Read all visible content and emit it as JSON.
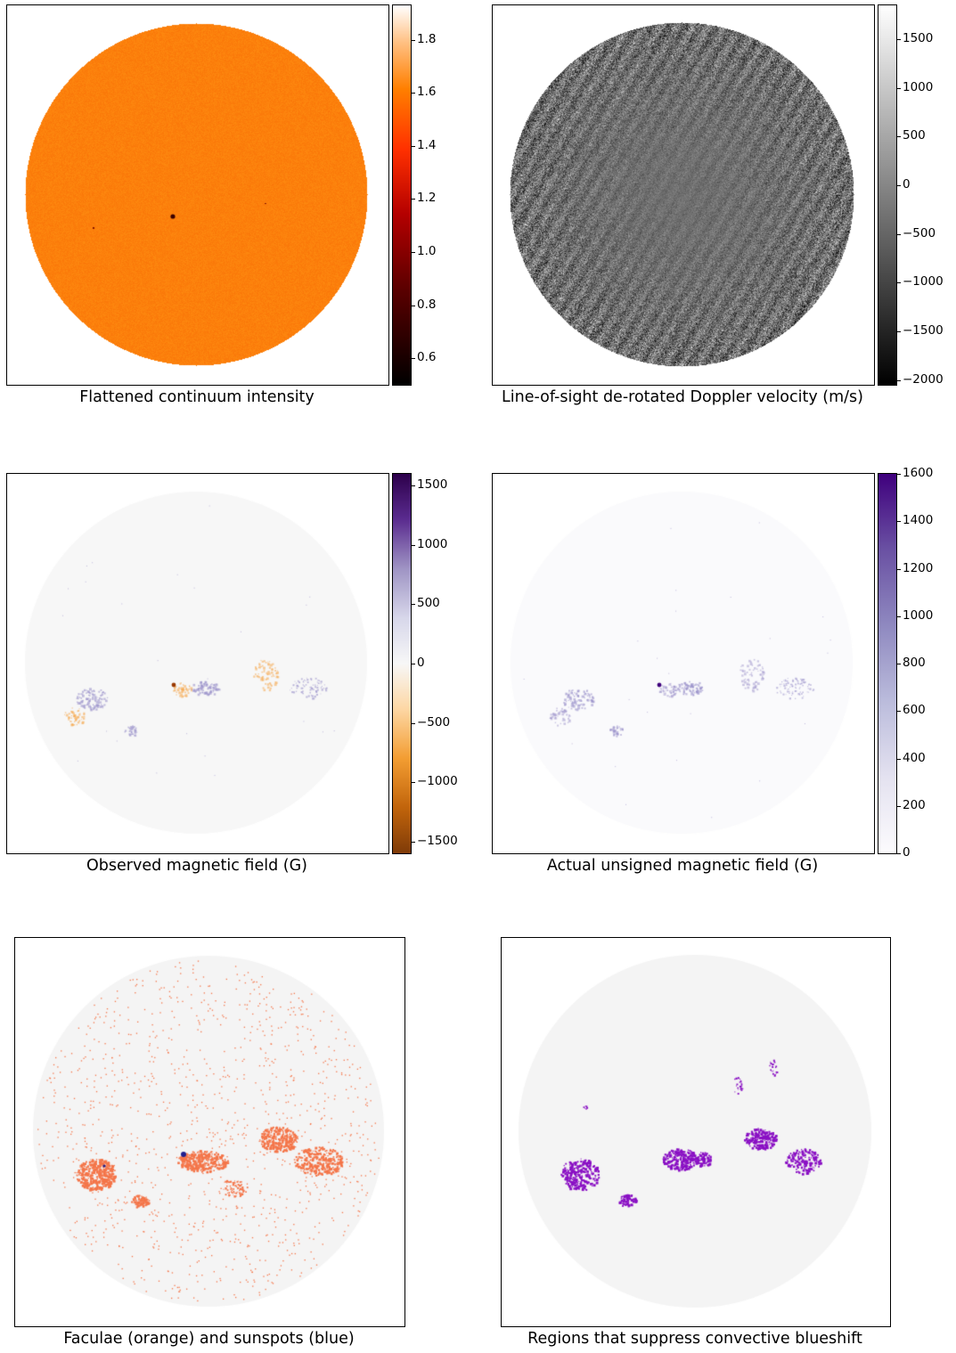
{
  "panels": [
    {
      "id": "continuum",
      "caption": "Flattened continuum intensity",
      "kind": "continuum",
      "colormap": "gist_heat",
      "colorbar": {
        "min": 0.5,
        "max": 1.93,
        "ticks": [
          0.6,
          0.8,
          1.0,
          1.2,
          1.4,
          1.6,
          1.8
        ],
        "tick_labels": [
          "0.6",
          "0.8",
          "1.0",
          "1.2",
          "1.4",
          "1.6",
          "1.8"
        ]
      }
    },
    {
      "id": "doppler",
      "caption": "Line-of-sight de-rotated Doppler velocity (m/s)",
      "kind": "doppler",
      "colormap": "gray",
      "colorbar": {
        "min": -2050,
        "max": 1850,
        "ticks": [
          -2000,
          -1500,
          -1000,
          -500,
          0,
          500,
          1000,
          1500
        ],
        "tick_labels": [
          "−2000",
          "−1500",
          "−1000",
          "−500",
          "0",
          "500",
          "1000",
          "1500"
        ]
      }
    },
    {
      "id": "observed-field",
      "caption": "Observed magnetic field (G)",
      "kind": "bsigned",
      "colormap": "PuOr",
      "colorbar": {
        "min": -1600,
        "max": 1600,
        "ticks": [
          -1500,
          -1000,
          -500,
          0,
          500,
          1000,
          1500
        ],
        "tick_labels": [
          "−1500",
          "−1000",
          "−500",
          "0",
          "500",
          "1000",
          "1500"
        ]
      }
    },
    {
      "id": "unsigned-field",
      "caption": "Actual unsigned magnetic field (G)",
      "kind": "bunsigned",
      "colormap": "Purples",
      "colorbar": {
        "min": 0,
        "max": 1600,
        "ticks": [
          0,
          200,
          400,
          600,
          800,
          1000,
          1200,
          1400,
          1600
        ],
        "tick_labels": [
          "0",
          "200",
          "400",
          "600",
          "800",
          "1000",
          "1200",
          "1400",
          "1600"
        ]
      }
    },
    {
      "id": "faculae-sunspots",
      "caption": "Faculae (orange) and sunspots (blue)",
      "kind": "faculae",
      "colors": {
        "disk": "#f4f4f4",
        "faculae": "#f4764a",
        "sunspots": "#1f1f8f"
      }
    },
    {
      "id": "suppression-regions",
      "caption": "Regions that suppress convective blueshift",
      "kind": "regions",
      "colors": {
        "disk": "#f4f4f4",
        "regions": "#8a10c4"
      }
    }
  ],
  "chart_data": [
    {
      "type": "heatmap",
      "title": "Flattened continuum intensity",
      "colorbar_range": [
        0.5,
        1.93
      ]
    },
    {
      "type": "heatmap",
      "title": "Line-of-sight de-rotated Doppler velocity (m/s)",
      "colorbar_range": [
        -2050,
        1850
      ]
    },
    {
      "type": "heatmap",
      "title": "Observed magnetic field (G)",
      "colorbar_range": [
        -1600,
        1600
      ]
    },
    {
      "type": "heatmap",
      "title": "Actual unsigned magnetic field (G)",
      "colorbar_range": [
        0,
        1600
      ]
    },
    {
      "type": "heatmap",
      "title": "Faculae (orange) and sunspots (blue)"
    },
    {
      "type": "heatmap",
      "title": "Regions that suppress convective blueshift"
    }
  ]
}
